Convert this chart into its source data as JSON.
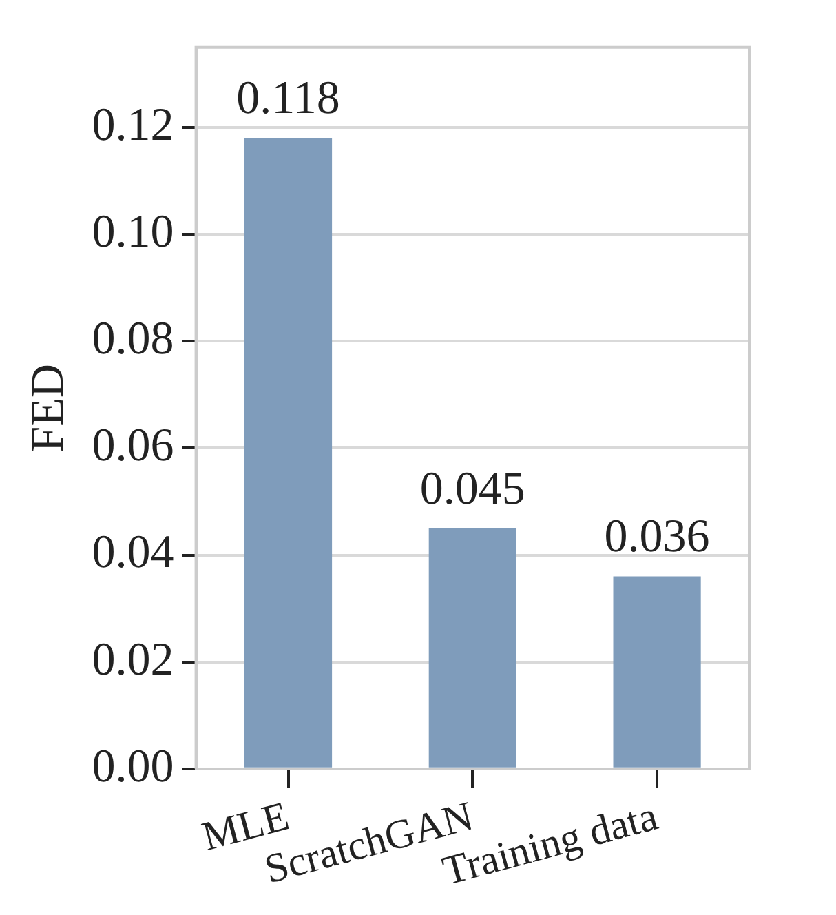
{
  "chart_data": {
    "type": "bar",
    "ylabel": "FED",
    "categories": [
      "MLE",
      "ScratchGAN",
      "Training data"
    ],
    "values": [
      0.118,
      0.045,
      0.036
    ],
    "color": "#7f9cbb",
    "ylim": [
      0,
      0.135
    ],
    "yticks": [
      {
        "value": 0,
        "label": "0.00"
      },
      0.02,
      0.04,
      0.06,
      0.08,
      {
        "value": 0.1,
        "label": "0.10"
      },
      0.12
    ],
    "grid": "y",
    "data_labels": true,
    "legend": false
  }
}
